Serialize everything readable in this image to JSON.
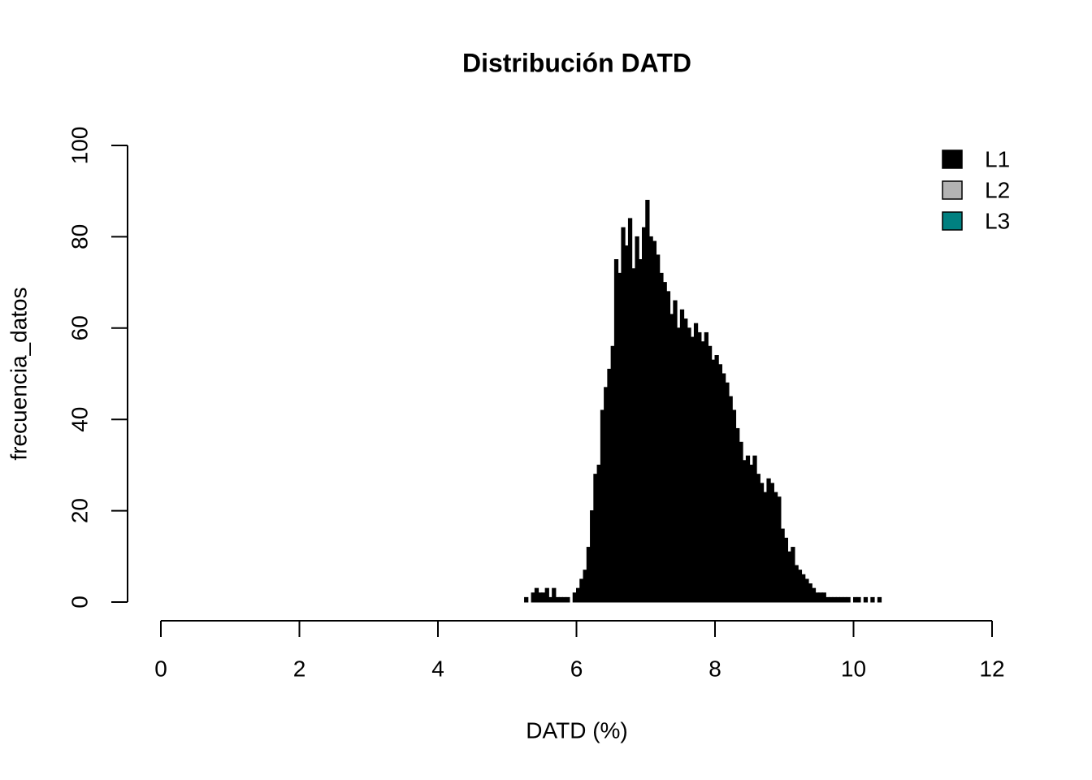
{
  "chart_data": {
    "type": "histogram",
    "title": "Distribución DATD",
    "xlabel": "DATD (%)",
    "ylabel": "frecuencia_datos",
    "bins": [
      5.25,
      5.3,
      5.35,
      5.4,
      5.45,
      5.5,
      5.55,
      5.6,
      5.65,
      5.7,
      5.75,
      5.8,
      5.85,
      5.9,
      5.95,
      6.0,
      6.05,
      6.1,
      6.15,
      6.2,
      6.25,
      6.3,
      6.35,
      6.4,
      6.45,
      6.5,
      6.55,
      6.6,
      6.65,
      6.7,
      6.75,
      6.8,
      6.85,
      6.9,
      6.95,
      7.0,
      7.05,
      7.1,
      7.15,
      7.2,
      7.25,
      7.3,
      7.35,
      7.4,
      7.45,
      7.5,
      7.55,
      7.6,
      7.65,
      7.7,
      7.75,
      7.8,
      7.85,
      7.9,
      7.95,
      8.0,
      8.05,
      8.1,
      8.15,
      8.2,
      8.25,
      8.3,
      8.35,
      8.4,
      8.45,
      8.5,
      8.55,
      8.6,
      8.65,
      8.7,
      8.75,
      8.8,
      8.85,
      8.9,
      8.95,
      9.0,
      9.05,
      9.1,
      9.15,
      9.2,
      9.25,
      9.3,
      9.35,
      9.4,
      9.45,
      9.5,
      9.55,
      9.6,
      9.65,
      9.7,
      9.75,
      9.8,
      9.85,
      9.9,
      9.95,
      10.0,
      10.05,
      10.1,
      10.15,
      10.2,
      10.25,
      10.3,
      10.35,
      10.4
    ],
    "counts": [
      1,
      0,
      2,
      3,
      2,
      2,
      3,
      1,
      3,
      1,
      1,
      1,
      1,
      0,
      2,
      3,
      5,
      7,
      12,
      20,
      28,
      30,
      42,
      47,
      51,
      56,
      75,
      72,
      82,
      78,
      84,
      73,
      80,
      75,
      82,
      88,
      80,
      79,
      76,
      72,
      70,
      68,
      63,
      66,
      60,
      64,
      62,
      60,
      58,
      61,
      59,
      57,
      59,
      56,
      53,
      54,
      52,
      50,
      48,
      45,
      42,
      38,
      35,
      31,
      32,
      30,
      32,
      28,
      26,
      24,
      27,
      26,
      24,
      23,
      16,
      14,
      11,
      12,
      8,
      7,
      6,
      5,
      4,
      3,
      2,
      2,
      2,
      1,
      1,
      1,
      1,
      1,
      1,
      1,
      0,
      1,
      1,
      0,
      1,
      0,
      1,
      0,
      1
    ],
    "color": "#000000",
    "xlim": [
      0,
      12
    ],
    "xticks": [
      0,
      2,
      4,
      6,
      8,
      10,
      12
    ],
    "ylim": [
      0,
      100
    ],
    "yticks": [
      0,
      20,
      40,
      60,
      80,
      100
    ],
    "legend": [
      {
        "name": "L1",
        "color": "#000000"
      },
      {
        "name": "L2",
        "color": "#b3b3b3"
      },
      {
        "name": "L3",
        "color": "#008080"
      }
    ],
    "legend_position": "topright"
  }
}
